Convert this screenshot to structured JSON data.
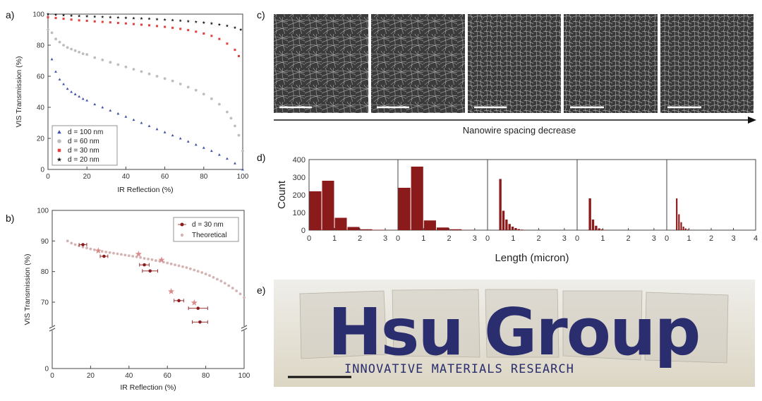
{
  "panel_labels": {
    "a": "a)",
    "b": "b)",
    "c": "c)",
    "d": "d)",
    "e": "e)"
  },
  "colors": {
    "d100": "#3f51a6",
    "d60": "#bdbdbd",
    "d30": "#e2413f",
    "d20": "#1a1a1a",
    "exp": "#8e1b1b",
    "theo": "#d6b3b3",
    "star": "#d98c8c",
    "bar": "#8b1a1a",
    "logo": "#2b2e6e",
    "sem_bg": "#3a3a3a"
  },
  "chart_data": [
    {
      "id": "a",
      "type": "scatter",
      "xlabel": "IR Reflection (%)",
      "ylabel": "VIS Transmission (%)",
      "xlim": [
        0,
        100
      ],
      "ylim": [
        0,
        100
      ],
      "xticks": [
        "0",
        "20",
        "40",
        "60",
        "80",
        "100"
      ],
      "yticks": [
        "0",
        "20",
        "40",
        "60",
        "80",
        "100"
      ],
      "series": [
        {
          "name": "d = 100 nm",
          "key": "d100",
          "marker": "triangle",
          "x": [
            2,
            4,
            6,
            8,
            10,
            12,
            14,
            16,
            18,
            20,
            24,
            28,
            32,
            36,
            40,
            44,
            48,
            52,
            56,
            60,
            64,
            68,
            72,
            76,
            80,
            84,
            88,
            92,
            96,
            100
          ],
          "y": [
            71,
            63,
            58,
            55,
            52,
            50,
            48.5,
            47,
            45.5,
            44.5,
            42,
            40,
            38,
            36,
            34,
            32,
            30,
            28,
            26,
            24,
            22,
            20,
            18,
            16,
            14,
            12,
            9.5,
            7,
            4,
            0
          ]
        },
        {
          "name": "d = 60 nm",
          "key": "d60",
          "marker": "circle",
          "x": [
            0,
            2,
            4,
            6,
            8,
            10,
            12,
            14,
            16,
            18,
            20,
            24,
            28,
            32,
            36,
            40,
            44,
            48,
            52,
            56,
            60,
            64,
            68,
            72,
            76,
            80,
            84,
            88,
            92,
            94,
            96,
            98,
            100
          ],
          "y": [
            90,
            88,
            84,
            82,
            80,
            78.5,
            77.5,
            76.5,
            75.5,
            74.5,
            74,
            72,
            70.5,
            69,
            67.5,
            66,
            64.5,
            63,
            61.5,
            60,
            58.5,
            57,
            55,
            53,
            51,
            48.5,
            45.5,
            42,
            37,
            33,
            28,
            22,
            12
          ]
        },
        {
          "name": "d = 30 nm",
          "key": "d30",
          "marker": "square",
          "x": [
            0,
            4,
            8,
            12,
            16,
            20,
            24,
            28,
            32,
            36,
            40,
            44,
            48,
            52,
            56,
            60,
            64,
            68,
            72,
            76,
            80,
            84,
            88,
            92,
            96,
            98
          ],
          "y": [
            98,
            97.5,
            97,
            96.5,
            96,
            95.7,
            95.3,
            95,
            94.7,
            94.3,
            94,
            93.6,
            93.2,
            92.8,
            92.3,
            91.8,
            91.2,
            90.5,
            89.7,
            88.7,
            87.5,
            86,
            84,
            81,
            77,
            73
          ]
        },
        {
          "name": "d = 20 nm",
          "key": "d20",
          "marker": "star",
          "x": [
            0,
            4,
            8,
            12,
            16,
            20,
            24,
            28,
            32,
            36,
            40,
            44,
            48,
            52,
            56,
            60,
            64,
            68,
            72,
            76,
            80,
            84,
            88,
            92,
            96,
            99
          ],
          "y": [
            100,
            99.6,
            99.3,
            99,
            98.8,
            98.6,
            98.4,
            98.2,
            98,
            97.8,
            97.6,
            97.4,
            97.2,
            97,
            96.7,
            96.4,
            96.1,
            95.8,
            95.4,
            95,
            94.5,
            94,
            93.3,
            92.5,
            91.3,
            90
          ]
        }
      ]
    },
    {
      "id": "b",
      "type": "scatter",
      "xlabel": "IR Reflection (%)",
      "ylabel": "VIS Transmission (%)",
      "xlim": [
        0,
        100
      ],
      "yticks": [
        "0",
        "70",
        "80",
        "90",
        "100"
      ],
      "xticks": [
        "0",
        "20",
        "40",
        "60",
        "80",
        "100"
      ],
      "legend": [
        "d = 30 nm",
        "Theoretical"
      ],
      "theoretical": {
        "x": [
          8,
          10,
          12,
          14,
          16,
          18,
          20,
          22,
          24,
          26,
          28,
          30,
          32,
          34,
          36,
          38,
          40,
          42,
          44,
          46,
          48,
          50,
          52,
          54,
          56,
          58,
          60,
          62,
          64,
          66,
          68,
          70,
          72,
          74,
          76,
          78,
          80,
          82,
          84,
          86,
          88,
          90,
          92,
          94,
          96,
          98,
          100
        ],
        "y": [
          90,
          89.3,
          88.8,
          88.4,
          88,
          87.7,
          87.4,
          87.1,
          86.9,
          86.6,
          86.4,
          86.2,
          86,
          85.8,
          85.6,
          85.4,
          85.2,
          85,
          84.8,
          84.6,
          84.3,
          84.1,
          83.9,
          83.6,
          83.4,
          83.1,
          82.8,
          82.5,
          82.2,
          81.9,
          81.6,
          81.3,
          80.9,
          80.5,
          80.1,
          79.7,
          79.2,
          78.7,
          78.1,
          77.5,
          76.9,
          76.2,
          75.4,
          74.6,
          73.7,
          72.7,
          71.5
        ]
      },
      "experimental": [
        {
          "x": 16,
          "y": 88.8,
          "xerr": 2
        },
        {
          "x": 27,
          "y": 85,
          "xerr": 2
        },
        {
          "x": 48,
          "y": 82.2,
          "xerr": 2.5
        },
        {
          "x": 51,
          "y": 80.2,
          "xerr": 4
        },
        {
          "x": 66,
          "y": 70.5,
          "xerr": 2.5
        },
        {
          "x": 76,
          "y": 68,
          "xerr": 5
        },
        {
          "x": 77,
          "y": 63.5,
          "xerr": 4
        }
      ],
      "stars": [
        {
          "x": 24,
          "y": 86.8
        },
        {
          "x": 45,
          "y": 85.7
        },
        {
          "x": 57,
          "y": 83.8
        },
        {
          "x": 62,
          "y": 73.5
        },
        {
          "x": 74,
          "y": 69.8
        }
      ]
    },
    {
      "id": "d",
      "type": "bar",
      "xlabel": "Length (micron)",
      "ylabel": "Count",
      "ylim": [
        0,
        400
      ],
      "yticks": [
        "0",
        "100",
        "200",
        "300",
        "400"
      ],
      "panels": [
        {
          "xticks": [
            "0",
            "1",
            "2",
            "3"
          ],
          "xmax": 3.5,
          "bins": [
            [
              0.25,
              220
            ],
            [
              0.75,
              280
            ],
            [
              1.25,
              70
            ],
            [
              1.75,
              18
            ],
            [
              2.25,
              5
            ],
            [
              2.75,
              2
            ],
            [
              3.25,
              1
            ]
          ],
          "width": 0.5
        },
        {
          "xticks": [
            "0",
            "1",
            "2",
            "3"
          ],
          "xmax": 3.5,
          "bins": [
            [
              0.25,
              240
            ],
            [
              0.75,
              360
            ],
            [
              1.25,
              55
            ],
            [
              1.75,
              15
            ],
            [
              2.25,
              5
            ],
            [
              2.75,
              1
            ]
          ],
          "width": 0.5
        },
        {
          "xticks": [
            "0",
            "1",
            "2",
            "3"
          ],
          "xmax": 3.5,
          "bins": [
            [
              0.5,
              290
            ],
            [
              0.62,
              110
            ],
            [
              0.74,
              60
            ],
            [
              0.86,
              35
            ],
            [
              0.98,
              20
            ],
            [
              1.1,
              12
            ],
            [
              1.22,
              6
            ],
            [
              1.34,
              3
            ],
            [
              1.46,
              1
            ]
          ],
          "width": 0.12
        },
        {
          "xticks": [
            "0",
            "1",
            "2",
            "3"
          ],
          "xmax": 3.5,
          "bins": [
            [
              0.5,
              180
            ],
            [
              0.62,
              60
            ],
            [
              0.74,
              25
            ],
            [
              0.86,
              10
            ],
            [
              0.98,
              5
            ],
            [
              1.1,
              2
            ]
          ],
          "width": 0.12
        },
        {
          "xticks": [
            "0",
            "1",
            "2",
            "3",
            "4"
          ],
          "xmax": 4,
          "bins": [
            [
              0.45,
              180
            ],
            [
              0.55,
              90
            ],
            [
              0.65,
              45
            ],
            [
              0.75,
              20
            ],
            [
              0.85,
              10
            ],
            [
              0.95,
              4
            ],
            [
              1.05,
              2
            ]
          ],
          "width": 0.1
        }
      ]
    }
  ],
  "panel_c": {
    "arrow_label": "Nanowire spacing decrease",
    "images": 5
  },
  "panel_e": {
    "logo_text": "Hsu Group",
    "subtitle": "INNOVATIVE MATERIALS RESEARCH"
  }
}
